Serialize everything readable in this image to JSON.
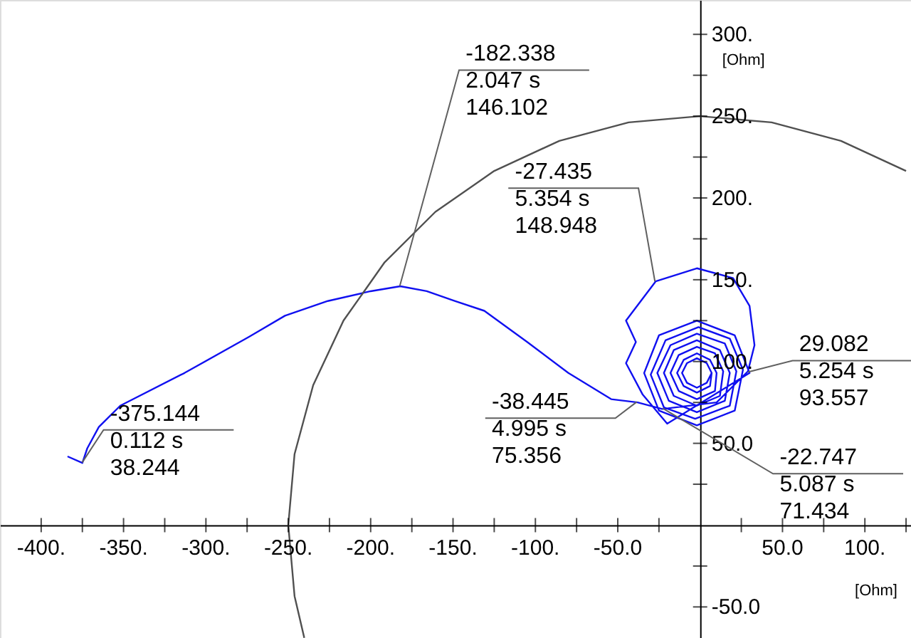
{
  "chart_data": {
    "type": "line",
    "xlabel": "[Ohm]",
    "ylabel": "[Ohm]",
    "xlim": [
      -425,
      128
    ],
    "ylim": [
      -69,
      321
    ],
    "xticks": [
      {
        "value": -400,
        "label": "-400."
      },
      {
        "value": -375,
        "label": null
      },
      {
        "value": -350,
        "label": "-350."
      },
      {
        "value": -325,
        "label": null
      },
      {
        "value": -300,
        "label": "-300."
      },
      {
        "value": -275,
        "label": null
      },
      {
        "value": -250,
        "label": "-250."
      },
      {
        "value": -225,
        "label": null
      },
      {
        "value": -200,
        "label": "-200."
      },
      {
        "value": -175,
        "label": null
      },
      {
        "value": -150,
        "label": "-150."
      },
      {
        "value": -125,
        "label": null
      },
      {
        "value": -100,
        "label": "-100."
      },
      {
        "value": -75,
        "label": null
      },
      {
        "value": -50,
        "label": "-50.0"
      },
      {
        "value": -25,
        "label": null
      },
      {
        "value": 25,
        "label": null
      },
      {
        "value": 50,
        "label": "50.0"
      },
      {
        "value": 75,
        "label": null
      },
      {
        "value": 100,
        "label": "100."
      },
      {
        "value": 125,
        "label": null
      }
    ],
    "yticks": [
      {
        "value": -50,
        "label": "-50.0"
      },
      {
        "value": -25,
        "label": null
      },
      {
        "value": 25,
        "label": null
      },
      {
        "value": 50,
        "label": "50.0"
      },
      {
        "value": 75,
        "label": null
      },
      {
        "value": 100,
        "label": "100."
      },
      {
        "value": 125,
        "label": null
      },
      {
        "value": 150,
        "label": "150."
      },
      {
        "value": 175,
        "label": null
      },
      {
        "value": 200,
        "label": "200."
      },
      {
        "value": 225,
        "label": null
      },
      {
        "value": 250,
        "label": "250."
      },
      {
        "value": 275,
        "label": null
      },
      {
        "value": 300,
        "label": "300."
      }
    ],
    "grid": false,
    "marker": "none",
    "line_style": "solid",
    "series": [
      {
        "color": "#1010f0",
        "x": [
          -384,
          -375,
          -372,
          -365,
          -352,
          -313,
          -274,
          -252,
          -226,
          -200,
          -182,
          -166,
          -149,
          -131,
          -105,
          -80,
          -54,
          -38,
          -23,
          10,
          29,
          33,
          30,
          20,
          -2,
          -27,
          -45,
          -39,
          -45,
          -35,
          -20,
          30,
          21,
          -2,
          -25,
          -34,
          -25,
          -2,
          21,
          26,
          18,
          -1,
          -21,
          -30,
          -22,
          -3,
          18,
          22,
          15,
          -2,
          -18,
          -26,
          -19,
          -2,
          15,
          18,
          12,
          -2,
          -16,
          -22,
          -16,
          -2,
          12,
          14,
          9,
          -2,
          -13,
          -18,
          -13,
          -2,
          9,
          10,
          6,
          -2,
          -10,
          -14,
          -10,
          -2,
          6,
          7,
          4,
          -2,
          -8,
          -11,
          -8,
          -2,
          4,
          7
        ],
        "values": [
          42,
          38,
          47,
          60,
          73,
          93,
          115,
          128,
          137,
          143,
          146,
          143,
          137,
          131,
          112,
          93,
          77,
          75,
          71,
          75,
          94,
          110,
          134,
          151,
          157,
          149,
          125,
          112,
          99,
          80,
          62,
          93,
          116,
          125,
          116,
          93,
          70,
          61,
          70,
          95,
          114,
          121,
          113,
          92,
          72,
          65,
          73,
          94,
          111,
          117,
          110,
          93,
          76,
          69,
          76,
          93,
          107,
          113,
          107,
          93,
          79,
          73,
          79,
          94,
          105,
          109,
          104,
          93,
          82,
          77,
          82,
          93,
          101,
          105,
          101,
          93,
          85,
          81,
          85,
          93,
          99,
          102,
          99,
          93,
          87,
          84,
          87,
          93
        ]
      },
      {
        "color": "#505050",
        "x": [
          125,
          85.5,
          43.4,
          0,
          -43.4,
          -85.5,
          -125,
          -160.7,
          -191.5,
          -216.5,
          -234.9,
          -246.2,
          -250,
          -246.2,
          -240.3
        ],
        "values": [
          216.5,
          234.9,
          246.2,
          250,
          246.2,
          234.9,
          216.5,
          191.5,
          160.7,
          125,
          85.5,
          43.4,
          0,
          -43.4,
          -68.9
        ]
      }
    ],
    "annotations": [
      {
        "text": "-375.144\n0.112 s\n38.244",
        "x": -375.144,
        "y": 38.244
      },
      {
        "text": "-182.338\n2.047 s\n146.102",
        "x": -182.338,
        "y": 146.102
      },
      {
        "text": "-27.435\n5.354 s\n148.948",
        "x": -27.435,
        "y": 148.948
      },
      {
        "text": "29.082\n5.254 s\n93.557",
        "x": 29.082,
        "y": 93.557
      },
      {
        "text": "-38.445\n4.995 s\n75.356",
        "x": -38.445,
        "y": 75.356
      },
      {
        "text": "-22.747\n5.087 s\n71.434",
        "x": -22.747,
        "y": 71.434
      }
    ]
  }
}
